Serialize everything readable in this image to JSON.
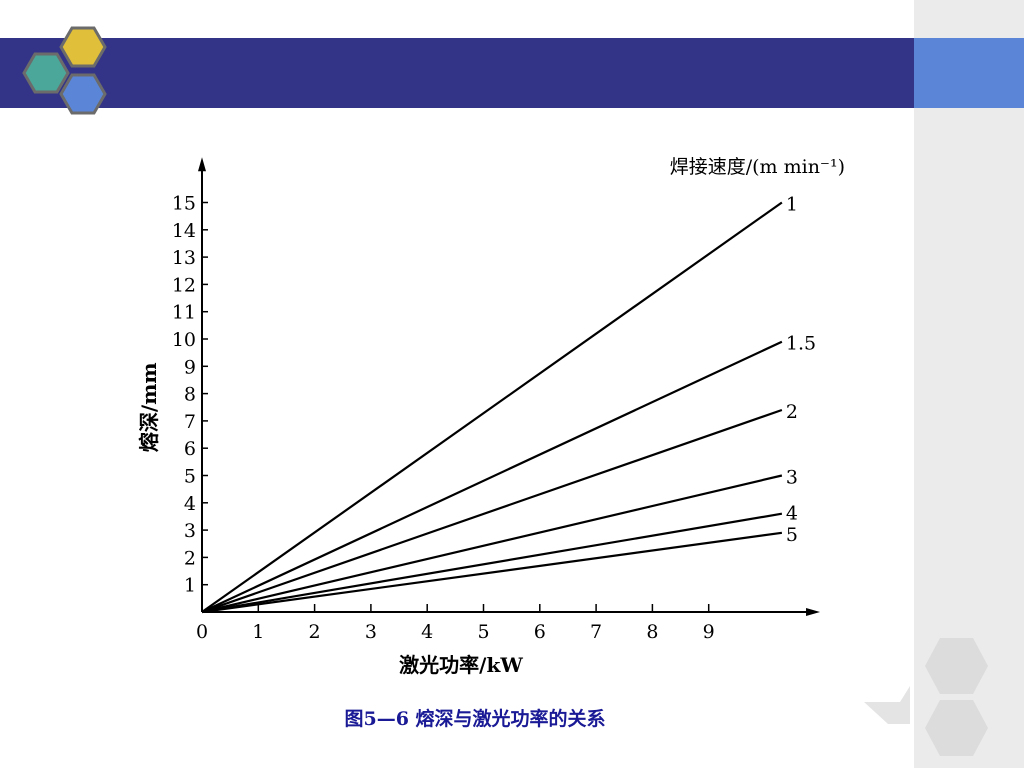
{
  "theme": {
    "title_bar_color": "#333388",
    "title_bar_right_color": "#5b86d8",
    "panel_color": "#ebebeb",
    "hex_colors": [
      "#4aa79a",
      "#e0bf3a",
      "#5b86d8"
    ],
    "caption_color": "#1a1a96"
  },
  "caption": "图5—6 熔深与激光功率的关系",
  "chart_data": {
    "type": "line",
    "xlabel": "激光功率/kW",
    "ylabel": "熔深/mm",
    "legend_title": "焊接速度/(m min⁻¹)",
    "x_ticks": [
      0,
      1,
      2,
      3,
      4,
      5,
      6,
      7,
      8,
      9
    ],
    "y_ticks": [
      1,
      2,
      3,
      4,
      5,
      6,
      7,
      8,
      9,
      10,
      11,
      12,
      13,
      14,
      15
    ],
    "xlim": [
      0,
      10.8
    ],
    "ylim": [
      0,
      16
    ],
    "series": [
      {
        "name": "1",
        "x": [
          0,
          10.3
        ],
        "y": [
          0,
          15.0
        ]
      },
      {
        "name": "1.5",
        "x": [
          0,
          10.3
        ],
        "y": [
          0,
          9.9
        ]
      },
      {
        "name": "2",
        "x": [
          0,
          10.3
        ],
        "y": [
          0,
          7.4
        ]
      },
      {
        "name": "3",
        "x": [
          0,
          10.3
        ],
        "y": [
          0,
          5.0
        ]
      },
      {
        "name": "4",
        "x": [
          0,
          10.3
        ],
        "y": [
          0,
          3.6
        ]
      },
      {
        "name": "5",
        "x": [
          0,
          10.3
        ],
        "y": [
          0,
          2.9
        ]
      }
    ]
  }
}
